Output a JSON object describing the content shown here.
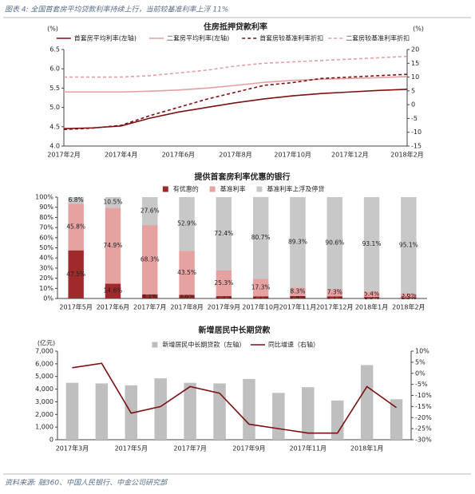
{
  "header": {
    "title": "图表 4: 全国首套房平均贷款利率持续上行，当前较基准利率上浮 11%"
  },
  "chart_data": [
    {
      "type": "line",
      "title": "住房抵押贷款利率",
      "ylabel": "(%)",
      "y2label": "(%)",
      "categories": [
        "2017年2月",
        null,
        "2017年4月",
        null,
        "2017年6月",
        null,
        "2017年8月",
        null,
        "2017年10月",
        null,
        "2017年12月",
        null,
        "2018年2月"
      ],
      "series": [
        {
          "name": "首套房平均利率(左轴)",
          "color": "#7b1113",
          "values": [
            4.45,
            4.47,
            4.52,
            4.72,
            4.88,
            5.0,
            5.12,
            5.22,
            5.3,
            5.36,
            5.4,
            5.44,
            5.47
          ]
        },
        {
          "name": "二套房平均利率(左轴)",
          "color": "#e4a0a0",
          "values": [
            5.4,
            5.4,
            5.4,
            5.42,
            5.45,
            5.5,
            5.57,
            5.65,
            5.7,
            5.73,
            5.75,
            5.77,
            5.8
          ]
        },
        {
          "name": "首套房较基准利率折扣",
          "color": "#7b1113",
          "dash": true,
          "axis": "y2",
          "values": [
            -9,
            -8.5,
            -7.5,
            -4,
            -1,
            2,
            4.5,
            7,
            8,
            9.5,
            10,
            10.5,
            11
          ]
        },
        {
          "name": "二套房较基准利率折扣",
          "color": "#e4a0a0",
          "dash": true,
          "axis": "y2",
          "values": [
            10,
            10,
            10,
            10.5,
            11.5,
            12.5,
            14,
            15,
            15.5,
            16,
            16.5,
            17,
            17.5
          ]
        }
      ],
      "ylim": [
        4,
        6.5
      ],
      "yticks": [
        {
          "value": 4,
          "label": "4.0"
        },
        4.5,
        {
          "value": 5,
          "label": "5.0"
        },
        5.5,
        {
          "value": 6,
          "label": "6.0"
        },
        6.5
      ],
      "y2lim": [
        -15,
        20
      ],
      "y2ticks": [
        -15,
        -10,
        -5,
        0,
        5,
        10,
        15,
        20
      ]
    },
    {
      "type": "bar",
      "stacked": true,
      "title": "提供首套房利率优惠的银行",
      "categories": [
        "2017年5月",
        "2017年6月",
        "2017年7月",
        "2017年8月",
        "2017年9月",
        "2017年10月",
        "2017年11月",
        "2017年12月",
        "2018年1月",
        "2018年2月"
      ],
      "series": [
        {
          "name": "有优惠的",
          "color": "#a0292b",
          "values": [
            47.5,
            14.6,
            4.1,
            3.6,
            2.3,
            2.1,
            2.4,
            2.1,
            1.5,
            1.3
          ],
          "value_labels": [
            "47.5%",
            "14.6%",
            "4.1%",
            "3.6%",
            "2.3%",
            "2.1%",
            "2.4%",
            "2.1%",
            "1.5%",
            "1.3%"
          ]
        },
        {
          "name": "基准利率",
          "color": "#e6a1a1",
          "values": [
            45.8,
            74.9,
            68.3,
            43.5,
            25.3,
            17.3,
            8.3,
            7.3,
            5.4,
            3.6
          ],
          "value_labels": [
            "45.8%",
            "74.9%",
            "68.3%",
            "43.5%",
            "25.3%",
            "17.3%",
            "8.3%",
            "7.3%",
            "5.4%",
            "3.6%"
          ]
        },
        {
          "name": "基准利率上浮及停贷",
          "color": "#c8c8c8",
          "values": [
            6.8,
            10.5,
            27.6,
            52.9,
            72.4,
            80.7,
            89.3,
            90.6,
            93.1,
            95.1
          ],
          "value_labels": [
            "6.8%",
            "10.5%",
            "27.6%",
            "52.9%",
            "72.4%",
            "80.7%",
            "89.3%",
            "90.6%",
            "93.1%",
            "95.1%"
          ]
        }
      ],
      "ylim": [
        0,
        100
      ],
      "yticks": [
        {
          "value": 0,
          "label": "0%"
        },
        {
          "value": 10,
          "label": "10%"
        },
        {
          "value": 20,
          "label": "20%"
        },
        {
          "value": 30,
          "label": "30%"
        },
        {
          "value": 40,
          "label": "40%"
        },
        {
          "value": 50,
          "label": "50%"
        },
        {
          "value": 60,
          "label": "60%"
        },
        {
          "value": 70,
          "label": "70%"
        },
        {
          "value": 80,
          "label": "80%"
        },
        {
          "value": 90,
          "label": "90%"
        },
        {
          "value": 100,
          "label": "100%"
        }
      ]
    },
    {
      "type": "bar",
      "title": "新增居民中长期贷款",
      "ylabel": "(亿元)",
      "categories": [
        "2017年3月",
        null,
        "2017年5月",
        null,
        "2017年7月",
        null,
        "2017年9月",
        null,
        "2017年11月",
        null,
        "2018年1月",
        null
      ],
      "series": [
        {
          "name": "新增居民中长期贷款（左轴）",
          "color": "#bfbfbf",
          "values": [
            4500,
            4450,
            4300,
            4850,
            4500,
            4450,
            4800,
            3700,
            4150,
            3100,
            5900,
            3200
          ]
        },
        {
          "name": "同比增速（右轴）",
          "color": "#7b1113",
          "type": "line",
          "axis": "y2",
          "values": [
            2.5,
            4.5,
            -18,
            -15,
            -6,
            -9,
            -23,
            -25,
            -27,
            -27,
            -6,
            -15.5
          ]
        }
      ],
      "ylim": [
        0,
        7000
      ],
      "yticks": [
        0,
        {
          "value": 1000,
          "label": "1,000"
        },
        {
          "value": 2000,
          "label": "2,000"
        },
        {
          "value": 3000,
          "label": "3,000"
        },
        {
          "value": 4000,
          "label": "4,000"
        },
        {
          "value": 5000,
          "label": "5,000"
        },
        {
          "value": 6000,
          "label": "6,000"
        },
        {
          "value": 7000,
          "label": "7,000"
        }
      ],
      "y2lim": [
        -30,
        10
      ],
      "y2ticks": [
        {
          "value": -30,
          "label": "-30%"
        },
        {
          "value": -25,
          "label": "-25%"
        },
        {
          "value": -20,
          "label": "-20%"
        },
        {
          "value": -15,
          "label": "-15%"
        },
        {
          "value": -10,
          "label": "-10%"
        },
        {
          "value": -5,
          "label": "-5%"
        },
        {
          "value": 0,
          "label": "0%"
        },
        {
          "value": 5,
          "label": "5%"
        },
        {
          "value": 10,
          "label": "10%"
        }
      ]
    }
  ],
  "footer": {
    "source": "资料来源: 融360、中国人民银行、中金公司研究部"
  }
}
